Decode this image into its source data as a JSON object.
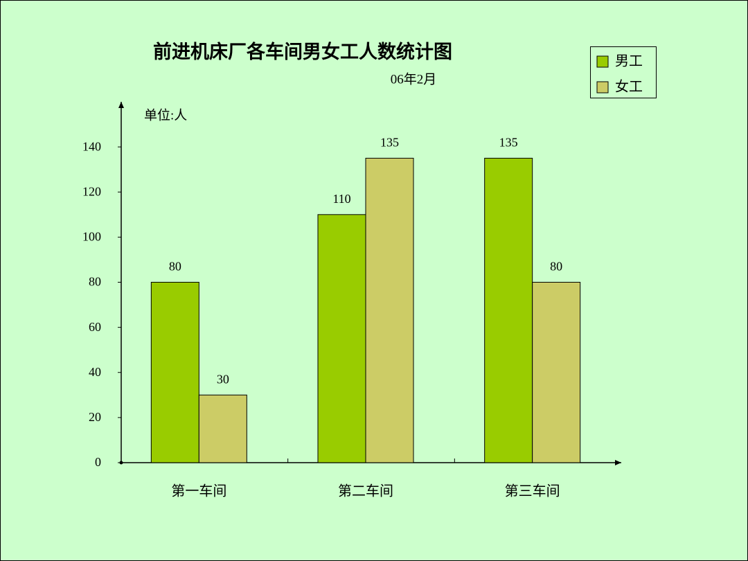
{
  "chart_data": {
    "type": "bar",
    "title": "前进机床厂各车间男女工人数统计图",
    "subtitle": "06年2月",
    "y_unit_label": "单位:人",
    "categories": [
      "第一车间",
      "第二车间",
      "第三车间"
    ],
    "series": [
      {
        "name": "男工",
        "color": "#99cc00",
        "values": [
          80,
          110,
          135
        ]
      },
      {
        "name": "女工",
        "color": "#cccc66",
        "values": [
          30,
          135,
          80
        ]
      }
    ],
    "ylim": [
      0,
      160
    ],
    "yticks": [
      0,
      20,
      40,
      60,
      80,
      100,
      120,
      140
    ],
    "legend": "top-right",
    "data_labels": true
  }
}
